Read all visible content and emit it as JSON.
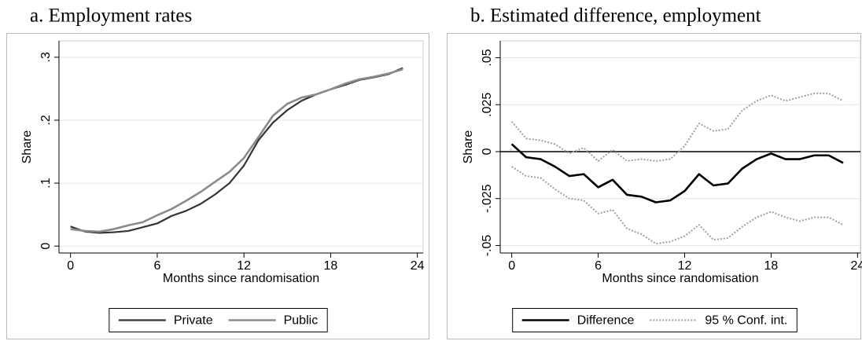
{
  "chart_data": [
    {
      "type": "line",
      "title": "a. Employment rates",
      "xlabel": "Months since randomisation",
      "ylabel": "Share",
      "x": [
        0,
        1,
        2,
        3,
        4,
        5,
        6,
        7,
        8,
        9,
        10,
        11,
        12,
        13,
        14,
        15,
        16,
        17,
        18,
        19,
        20,
        21,
        22,
        23
      ],
      "series": [
        {
          "name": "Private",
          "color": "#333333",
          "width": 2.2,
          "values": [
            0.031,
            0.023,
            0.021,
            0.022,
            0.024,
            0.03,
            0.036,
            0.048,
            0.056,
            0.067,
            0.082,
            0.1,
            0.128,
            0.168,
            0.196,
            0.216,
            0.231,
            0.241,
            0.249,
            0.256,
            0.264,
            0.268,
            0.273,
            0.283
          ]
        },
        {
          "name": "Public",
          "color": "#8a8a8a",
          "width": 2.6,
          "values": [
            0.027,
            0.024,
            0.023,
            0.027,
            0.033,
            0.038,
            0.049,
            0.059,
            0.072,
            0.086,
            0.102,
            0.118,
            0.14,
            0.173,
            0.207,
            0.226,
            0.236,
            0.241,
            0.249,
            0.258,
            0.265,
            0.269,
            0.274,
            0.281
          ]
        }
      ],
      "xlim": [
        -0.8,
        24.4
      ],
      "xticks": [
        0,
        6,
        12,
        18,
        24
      ],
      "ylim": [
        -0.011,
        0.326
      ],
      "yticks": [
        {
          "value": 0,
          "label": "0"
        },
        {
          "value": 0.1,
          "label": ".1"
        },
        {
          "value": 0.2,
          "label": ".2"
        },
        {
          "value": 0.3,
          "label": ".3"
        }
      ],
      "grid": true
    },
    {
      "type": "line",
      "title": "b. Estimated difference, employment",
      "xlabel": "Months since randomisation",
      "ylabel": "Share",
      "x": [
        0,
        1,
        2,
        3,
        4,
        5,
        6,
        7,
        8,
        9,
        10,
        11,
        12,
        13,
        14,
        15,
        16,
        17,
        18,
        19,
        20,
        21,
        22,
        23
      ],
      "series": [
        {
          "name": "Difference",
          "color": "#000000",
          "width": 2.6,
          "values": [
            0.004,
            -0.003,
            -0.004,
            -0.008,
            -0.013,
            -0.012,
            -0.019,
            -0.015,
            -0.023,
            -0.024,
            -0.027,
            -0.026,
            -0.021,
            -0.012,
            -0.018,
            -0.017,
            -0.009,
            -0.004,
            -0.001,
            -0.004,
            -0.004,
            -0.002,
            -0.002,
            -0.006
          ]
        },
        {
          "name": "95 % Conf. int.",
          "color": "#a0a0a0",
          "width": 2,
          "style": "dotted",
          "upper": [
            0.016,
            0.007,
            0.006,
            0.004,
            -0.001,
            0.002,
            -0.005,
            0.001,
            -0.005,
            -0.004,
            -0.005,
            -0.004,
            0.003,
            0.015,
            0.011,
            0.012,
            0.022,
            0.027,
            0.03,
            0.027,
            0.029,
            0.031,
            0.031,
            0.027
          ],
          "lower": [
            -0.008,
            -0.013,
            -0.014,
            -0.02,
            -0.025,
            -0.026,
            -0.033,
            -0.031,
            -0.041,
            -0.044,
            -0.049,
            -0.048,
            -0.045,
            -0.039,
            -0.047,
            -0.046,
            -0.04,
            -0.035,
            -0.032,
            -0.035,
            -0.037,
            -0.035,
            -0.035,
            -0.039
          ]
        }
      ],
      "xlim": [
        -0.8,
        24.2
      ],
      "xticks": [
        0,
        6,
        12,
        18,
        24
      ],
      "ylim": [
        -0.054,
        0.059
      ],
      "yticks": [
        {
          "value": -0.05,
          "label": "-.05"
        },
        {
          "value": -0.025,
          "label": "-.025"
        },
        {
          "value": 0,
          "label": "0"
        },
        {
          "value": 0.025,
          "label": ".025"
        },
        {
          "value": 0.05,
          "label": ".05"
        }
      ],
      "refline": 0,
      "grid": true
    }
  ]
}
